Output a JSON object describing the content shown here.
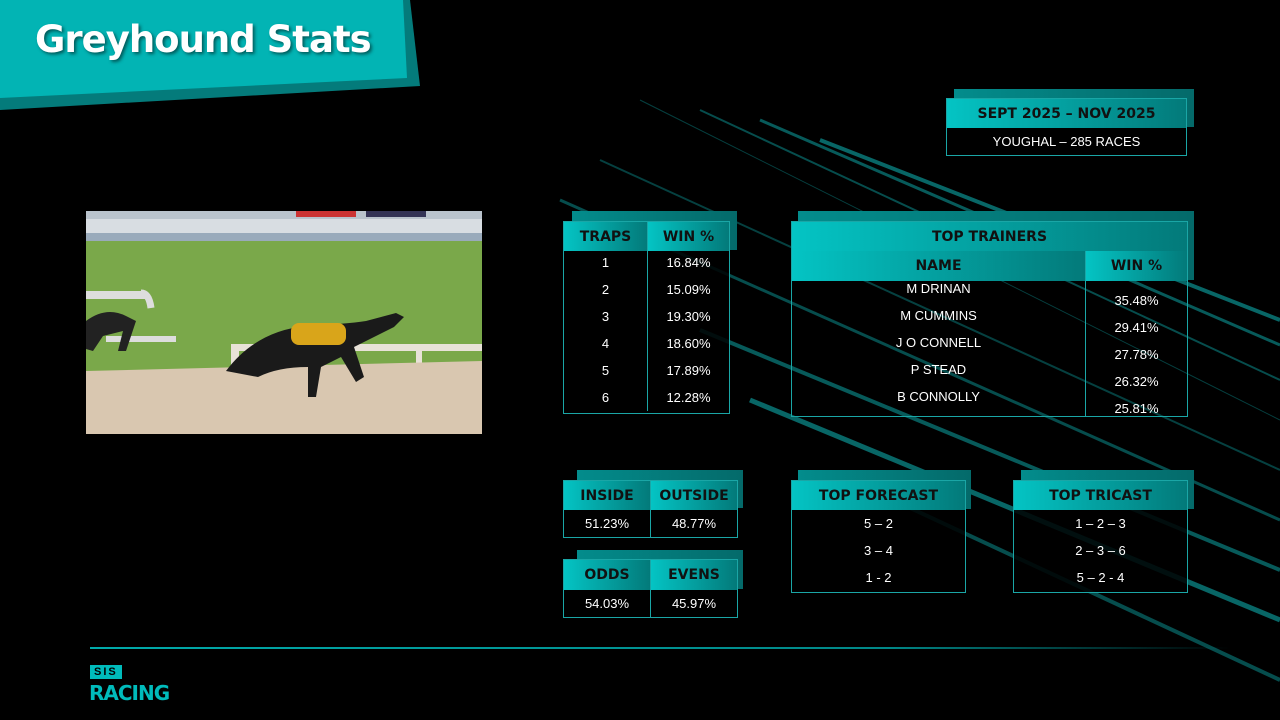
{
  "header": {
    "title": "Greyhound Stats"
  },
  "period": {
    "range": "SEPT 2025 – NOV 2025",
    "venue": "YOUGHAL –   285 RACES"
  },
  "traps": {
    "headers": [
      "TRAPS",
      "WIN %"
    ],
    "rows": [
      [
        "1",
        "16.84%"
      ],
      [
        "2",
        "15.09%"
      ],
      [
        "3",
        "19.30%"
      ],
      [
        "4",
        "18.60%"
      ],
      [
        "5",
        "17.89%"
      ],
      [
        "6",
        "12.28%"
      ]
    ]
  },
  "trainers": {
    "title": "TOP TRAINERS",
    "headers": [
      "NAME",
      "WIN %"
    ],
    "rows": [
      [
        "M DRINAN",
        "35.48%"
      ],
      [
        "M CUMMINS",
        "29.41%"
      ],
      [
        "J O CONNELL",
        "27.78%"
      ],
      [
        "P STEAD",
        "26.32%"
      ],
      [
        "B CONNOLLY",
        "25.81%"
      ]
    ]
  },
  "inside_outside": {
    "headers": [
      "INSIDE",
      "OUTSIDE"
    ],
    "values": [
      "51.23%",
      "48.77%"
    ]
  },
  "odds_evens": {
    "headers": [
      "ODDS",
      "EVENS"
    ],
    "values": [
      "54.03%",
      "45.97%"
    ]
  },
  "forecast": {
    "title": "TOP FORECAST",
    "rows": [
      "5 – 2",
      "3 – 4",
      "1 - 2"
    ]
  },
  "tricast": {
    "title": "TOP TRICAST",
    "rows": [
      "1 – 2 – 3",
      "2 – 3 – 6",
      "5 – 2 - 4"
    ]
  },
  "logo": {
    "top": "SIS",
    "bottom": "RACING"
  },
  "colors": {
    "accent": "#02b4b4",
    "accent_dark": "#047b7b",
    "background": "#000000"
  }
}
